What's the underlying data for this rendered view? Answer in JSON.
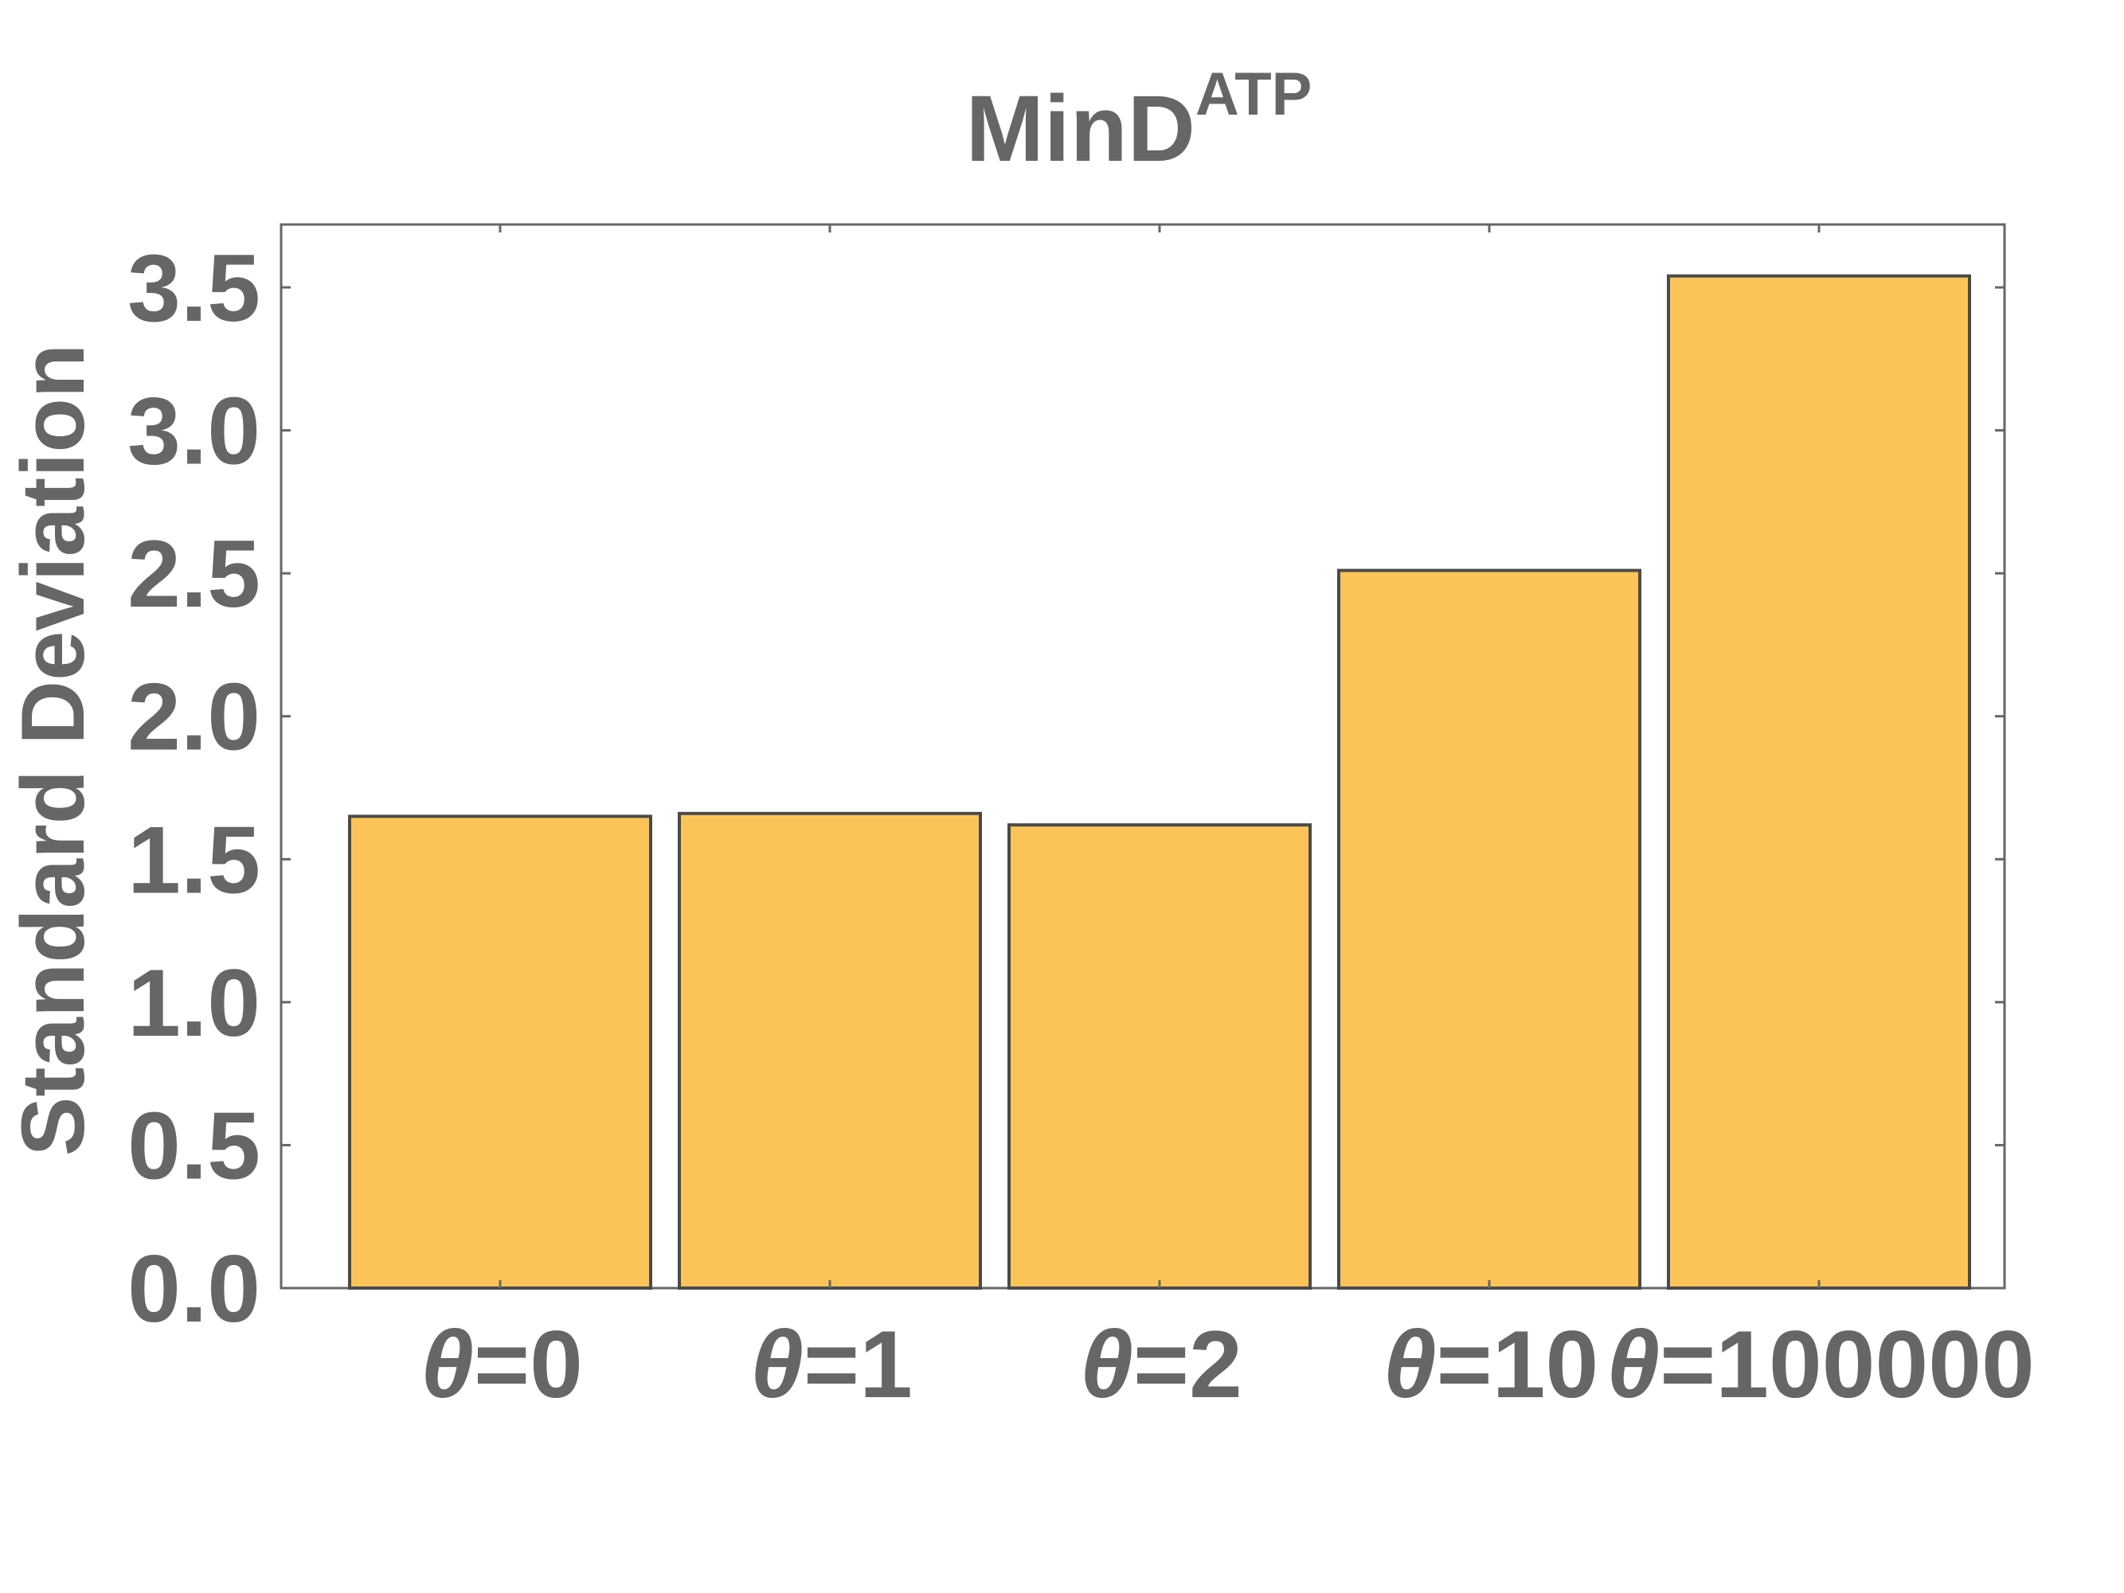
{
  "chart_data": {
    "type": "bar",
    "title": "MinD",
    "title_superscript": "ATP",
    "xlabel": "",
    "ylabel": "Standard Deviation",
    "categories": [
      {
        "symbol": "θ",
        "rest": "=0"
      },
      {
        "symbol": "θ",
        "rest": "=1"
      },
      {
        "symbol": "θ",
        "rest": "=2"
      },
      {
        "symbol": "θ",
        "rest": "=10"
      },
      {
        "symbol": "θ",
        "rest": "=100000"
      }
    ],
    "values": [
      1.65,
      1.66,
      1.62,
      2.51,
      3.54
    ],
    "ylim": [
      0,
      3.72
    ],
    "yticks": [
      "0.0",
      "0.5",
      "1.0",
      "1.5",
      "2.0",
      "2.5",
      "3.0",
      "3.5"
    ],
    "grid": false,
    "legend": "none",
    "colors": {
      "bar_fill": "#FCC458",
      "bar_stroke": "#4A4A4A",
      "axis": "#666666",
      "text": "#666666"
    }
  }
}
